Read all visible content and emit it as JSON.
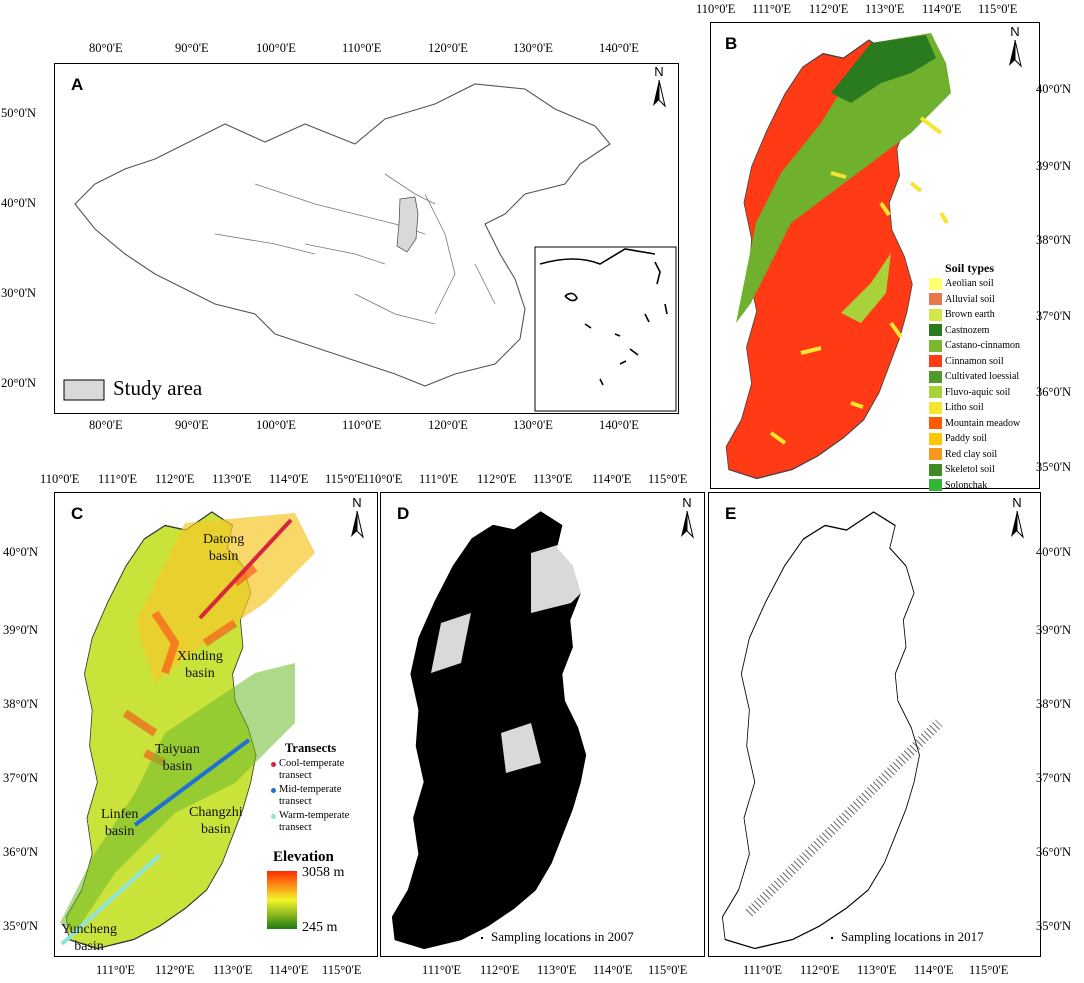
{
  "panels": {
    "a": {
      "label": "A",
      "study_area_label": "Study area",
      "top_ticks": [
        "80°0'E",
        "90°0'E",
        "100°0'E",
        "110°0'E",
        "120°0'E",
        "130°0'E",
        "140°0'E"
      ],
      "bottom_ticks": [
        "80°0'E",
        "90°0'E",
        "100°0'E",
        "110°0'E",
        "120°0'E",
        "130°0'E",
        "140°0'E"
      ],
      "left_ticks": [
        "50°0'N",
        "40°0'N",
        "30°0'N",
        "20°0'N"
      ]
    },
    "b": {
      "label": "B",
      "top_ticks": [
        "110°0'E",
        "111°0'E",
        "112°0'E",
        "113°0'E",
        "114°0'E",
        "115°0'E"
      ],
      "right_ticks": [
        "40°0'N",
        "39°0'N",
        "38°0'N",
        "37°0'N",
        "36°0'N",
        "35°0'N"
      ],
      "legend_title": "Soil types",
      "legend": [
        {
          "name": "Aeolian soil",
          "color": "#ffff73"
        },
        {
          "name": "Alluvial soil",
          "color": "#e6784a"
        },
        {
          "name": "Brown earth",
          "color": "#d4e64a"
        },
        {
          "name": "Castnozem",
          "color": "#2a7a1f"
        },
        {
          "name": "Castano-cinnamon",
          "color": "#7ab832"
        },
        {
          "name": "Cinnamon soil",
          "color": "#ff3a14"
        },
        {
          "name": "Cultivated loessial",
          "color": "#4f9a28"
        },
        {
          "name": "Fluvo-aquic soil",
          "color": "#a8d13a"
        },
        {
          "name": "Litho soil",
          "color": "#f7e630"
        },
        {
          "name": "Mountain meadow",
          "color": "#ff5a00"
        },
        {
          "name": "Paddy soil",
          "color": "#ffc800"
        },
        {
          "name": "Red clay soil",
          "color": "#f59a1e"
        },
        {
          "name": "Skeletol soil",
          "color": "#3f8a23"
        },
        {
          "name": "Solonchak",
          "color": "#35b535"
        }
      ]
    },
    "c": {
      "label": "C",
      "top_ticks": [
        "110°0'E",
        "111°0'E",
        "112°0'E",
        "113°0'E",
        "114°0'E",
        "115°0'E"
      ],
      "left_ticks": [
        "40°0'N",
        "39°0'N",
        "38°0'N",
        "37°0'N",
        "36°0'N",
        "35°0'N"
      ],
      "bottom_ticks": [
        "111°0'E",
        "112°0'E",
        "113°0'E",
        "114°0'E",
        "115°0'E"
      ],
      "basins": {
        "datong": "Datong\nbasin",
        "xinding": "Xinding\nbasin",
        "taiyuan": "Taiyuan\nbasin",
        "linfen": "Linfen\nbasin",
        "changzhi": "Changzhi\nbasin",
        "yuncheng": "Yuncheng\nbasin"
      },
      "transects_title": "Transects",
      "transects": [
        {
          "name": "Cool-temperate\ntransect",
          "color": "#d7263d"
        },
        {
          "name": "Mid-temperate\ntransect",
          "color": "#1f6fd6"
        },
        {
          "name": "Warm-temperate\ntransect",
          "color": "#8fe3d8"
        }
      ],
      "elevation_title": "Elevation",
      "elevation_max": "3058 m",
      "elevation_min": "245 m"
    },
    "d": {
      "label": "D",
      "legend": "Sampling locations in 2007",
      "top_ticks": [
        "110°0'E",
        "111°0'E",
        "112°0'E",
        "113°0'E",
        "114°0'E",
        "115°0'E"
      ],
      "bottom_ticks": [
        "111°0'E",
        "112°0'E",
        "113°0'E",
        "114°0'E",
        "115°0'E"
      ]
    },
    "e": {
      "label": "E",
      "legend": "Sampling locations in 2017",
      "right_ticks": [
        "40°0'N",
        "39°0'N",
        "38°0'N",
        "37°0'N",
        "36°0'N",
        "35°0'N"
      ],
      "bottom_ticks": [
        "111°0'E",
        "112°0'E",
        "113°0'E",
        "114°0'E",
        "115°0'E"
      ]
    }
  },
  "north_arrow_text": "N"
}
